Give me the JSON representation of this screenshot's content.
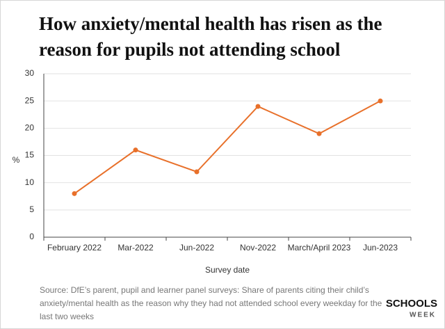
{
  "chart_data": {
    "type": "line",
    "title_lines": [
      "How anxiety/mental health has risen as the",
      "reason for pupils not attending school"
    ],
    "categories": [
      "February 2022",
      "Mar-2022",
      "Jun-2022",
      "Nov-2022",
      "March/April 2023",
      "Jun-2023"
    ],
    "series": [
      {
        "name": "Anxiety/mental health",
        "color": "#e8702a",
        "values": [
          8,
          16,
          12,
          24,
          19,
          25
        ]
      }
    ],
    "ylim": [
      0,
      30
    ],
    "yticks": [
      0,
      5,
      10,
      15,
      20,
      25,
      30
    ],
    "grid": true,
    "y_label": "%",
    "x_label": "Survey date",
    "source": "Source: DfE’s parent, pupil and learner panel surveys: Share of parents citing their child’s anxiety/mental health as the reason why they had not attended school every weekday for the last two weeks",
    "logo": [
      "SCHOOLS",
      "WEEK"
    ]
  }
}
